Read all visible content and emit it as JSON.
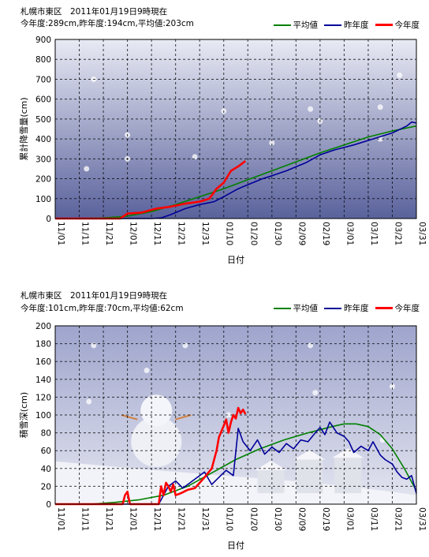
{
  "charts": [
    {
      "id": "snowfall",
      "header_line1": "札幌市東区　2011年01月19日9時現在",
      "header_line2": "今年度:289cm,昨年度:194cm,平均値:203cm"
    },
    {
      "id": "snowdepth",
      "header_line1": "札幌市東区　2011年01月19日9時現在",
      "header_line2": "今年度:101cm,昨年度:70cm,平均値:62cm"
    }
  ],
  "legend": [
    {
      "name": "平均値",
      "color": "#008000"
    },
    {
      "name": "昨年度",
      "color": "#000099"
    },
    {
      "name": "今年度",
      "color": "#ff0000"
    }
  ],
  "chart_data": [
    {
      "type": "line",
      "title": "",
      "xlabel": "日付",
      "ylabel": "累計降雪量(cm)",
      "ylim": [
        0,
        900
      ],
      "yticks": [
        0,
        100,
        200,
        300,
        400,
        500,
        600,
        700,
        800,
        900
      ],
      "x_range_days": [
        0,
        150
      ],
      "x_tick_labels": [
        "11/01",
        "11/11",
        "11/21",
        "12/01",
        "12/11",
        "12/21",
        "12/31",
        "01/10",
        "01/20",
        "01/30",
        "02/09",
        "02/19",
        "03/01",
        "03/11",
        "03/21",
        "03/31"
      ],
      "grid": true,
      "series": [
        {
          "name": "平均値",
          "color": "#008000",
          "points": [
            [
              0,
              0
            ],
            [
              10,
              0
            ],
            [
              20,
              3
            ],
            [
              30,
              12
            ],
            [
              40,
              35
            ],
            [
              50,
              70
            ],
            [
              60,
              110
            ],
            [
              70,
              150
            ],
            [
              80,
              195
            ],
            [
              90,
              240
            ],
            [
              100,
              285
            ],
            [
              110,
              330
            ],
            [
              120,
              370
            ],
            [
              130,
              410
            ],
            [
              140,
              440
            ],
            [
              150,
              465
            ]
          ]
        },
        {
          "name": "昨年度",
          "color": "#000099",
          "points": [
            [
              0,
              0
            ],
            [
              40,
              0
            ],
            [
              44,
              3
            ],
            [
              48,
              20
            ],
            [
              54,
              50
            ],
            [
              60,
              70
            ],
            [
              66,
              85
            ],
            [
              70,
              110
            ],
            [
              76,
              150
            ],
            [
              80,
              170
            ],
            [
              86,
              200
            ],
            [
              90,
              215
            ],
            [
              96,
              240
            ],
            [
              104,
              280
            ],
            [
              110,
              320
            ],
            [
              116,
              345
            ],
            [
              124,
              370
            ],
            [
              132,
              400
            ],
            [
              140,
              430
            ],
            [
              146,
              465
            ],
            [
              148,
              485
            ],
            [
              150,
              480
            ]
          ]
        },
        {
          "name": "今年度",
          "color": "#ff0000",
          "points": [
            [
              0,
              0
            ],
            [
              27,
              0
            ],
            [
              30,
              25
            ],
            [
              36,
              30
            ],
            [
              42,
              50
            ],
            [
              48,
              60
            ],
            [
              54,
              75
            ],
            [
              60,
              85
            ],
            [
              64,
              100
            ],
            [
              67,
              150
            ],
            [
              70,
              180
            ],
            [
              73,
              240
            ],
            [
              76,
              262
            ],
            [
              79,
              289
            ]
          ]
        }
      ]
    },
    {
      "type": "line",
      "title": "",
      "xlabel": "日付",
      "ylabel": "積雪深(cm)",
      "ylim": [
        0,
        200
      ],
      "yticks": [
        0,
        20,
        40,
        60,
        80,
        100,
        120,
        140,
        160,
        180,
        200
      ],
      "x_range_days": [
        0,
        150
      ],
      "x_tick_labels": [
        "11/01",
        "11/11",
        "11/21",
        "12/01",
        "12/11",
        "12/21",
        "12/31",
        "01/10",
        "01/20",
        "01/30",
        "02/09",
        "02/19",
        "03/01",
        "03/11",
        "03/21",
        "03/31"
      ],
      "grid": true,
      "series": [
        {
          "name": "平均値",
          "color": "#008000",
          "points": [
            [
              0,
              0
            ],
            [
              15,
              0
            ],
            [
              25,
              2
            ],
            [
              35,
              5
            ],
            [
              45,
              10
            ],
            [
              55,
              20
            ],
            [
              65,
              35
            ],
            [
              75,
              50
            ],
            [
              85,
              62
            ],
            [
              95,
              72
            ],
            [
              105,
              80
            ],
            [
              115,
              87
            ],
            [
              120,
              90
            ],
            [
              125,
              90
            ],
            [
              130,
              87
            ],
            [
              135,
              78
            ],
            [
              140,
              62
            ],
            [
              145,
              40
            ],
            [
              150,
              15
            ]
          ]
        },
        {
          "name": "昨年度",
          "color": "#000099",
          "points": [
            [
              0,
              0
            ],
            [
              43,
              0
            ],
            [
              47,
              20
            ],
            [
              50,
              26
            ],
            [
              53,
              18
            ],
            [
              56,
              24
            ],
            [
              59,
              30
            ],
            [
              62,
              36
            ],
            [
              65,
              22
            ],
            [
              68,
              30
            ],
            [
              71,
              38
            ],
            [
              74,
              32
            ],
            [
              76,
              85
            ],
            [
              78,
              70
            ],
            [
              81,
              60
            ],
            [
              84,
              72
            ],
            [
              87,
              56
            ],
            [
              90,
              64
            ],
            [
              93,
              58
            ],
            [
              96,
              68
            ],
            [
              99,
              62
            ],
            [
              102,
              72
            ],
            [
              105,
              70
            ],
            [
              108,
              80
            ],
            [
              110,
              86
            ],
            [
              112,
              78
            ],
            [
              114,
              92
            ],
            [
              117,
              80
            ],
            [
              120,
              76
            ],
            [
              122,
              70
            ],
            [
              124,
              58
            ],
            [
              127,
              65
            ],
            [
              130,
              60
            ],
            [
              132,
              70
            ],
            [
              135,
              55
            ],
            [
              137,
              50
            ],
            [
              140,
              45
            ],
            [
              142,
              36
            ],
            [
              144,
              30
            ],
            [
              146,
              28
            ],
            [
              148,
              32
            ],
            [
              150,
              12
            ]
          ]
        },
        {
          "name": "今年度",
          "color": "#ff0000",
          "points": [
            [
              0,
              0
            ],
            [
              28,
              0
            ],
            [
              29,
              10
            ],
            [
              30,
              14
            ],
            [
              31,
              0
            ],
            [
              43,
              0
            ],
            [
              44,
              20
            ],
            [
              45,
              10
            ],
            [
              46,
              24
            ],
            [
              47,
              20
            ],
            [
              48,
              14
            ],
            [
              49,
              22
            ],
            [
              50,
              10
            ],
            [
              52,
              12
            ],
            [
              55,
              16
            ],
            [
              58,
              18
            ],
            [
              62,
              30
            ],
            [
              65,
              40
            ],
            [
              67,
              60
            ],
            [
              68,
              75
            ],
            [
              70,
              88
            ],
            [
              71,
              95
            ],
            [
              72,
              80
            ],
            [
              73,
              92
            ],
            [
              74,
              100
            ],
            [
              75,
              96
            ],
            [
              76,
              108
            ],
            [
              77,
              102
            ],
            [
              78,
              106
            ],
            [
              79,
              101
            ]
          ]
        }
      ]
    }
  ]
}
